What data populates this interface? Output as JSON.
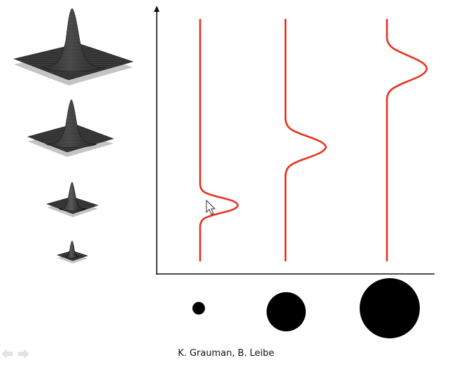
{
  "credit": "K. Grauman, B. Leibe",
  "colors": {
    "curve": "#e8321e",
    "axis": "#111111",
    "blob": "#000000",
    "surface_dark": "#2c2c2c",
    "surface_base": "#bdbdbd"
  },
  "icons": {
    "cursor": "mouse-pointer-icon",
    "nav": "slide-nav-arrows-icon"
  },
  "gaussians_3d": [
    {
      "scale": "largest"
    },
    {
      "scale": "large"
    },
    {
      "scale": "medium"
    },
    {
      "scale": "small"
    }
  ],
  "response_curves": [
    {
      "name": "small-scale-response",
      "peak_position": "low"
    },
    {
      "name": "medium-scale-response",
      "peak_position": "middle"
    },
    {
      "name": "large-scale-response",
      "peak_position": "high"
    }
  ],
  "blobs": [
    {
      "size": "small"
    },
    {
      "size": "medium"
    },
    {
      "size": "large"
    }
  ]
}
